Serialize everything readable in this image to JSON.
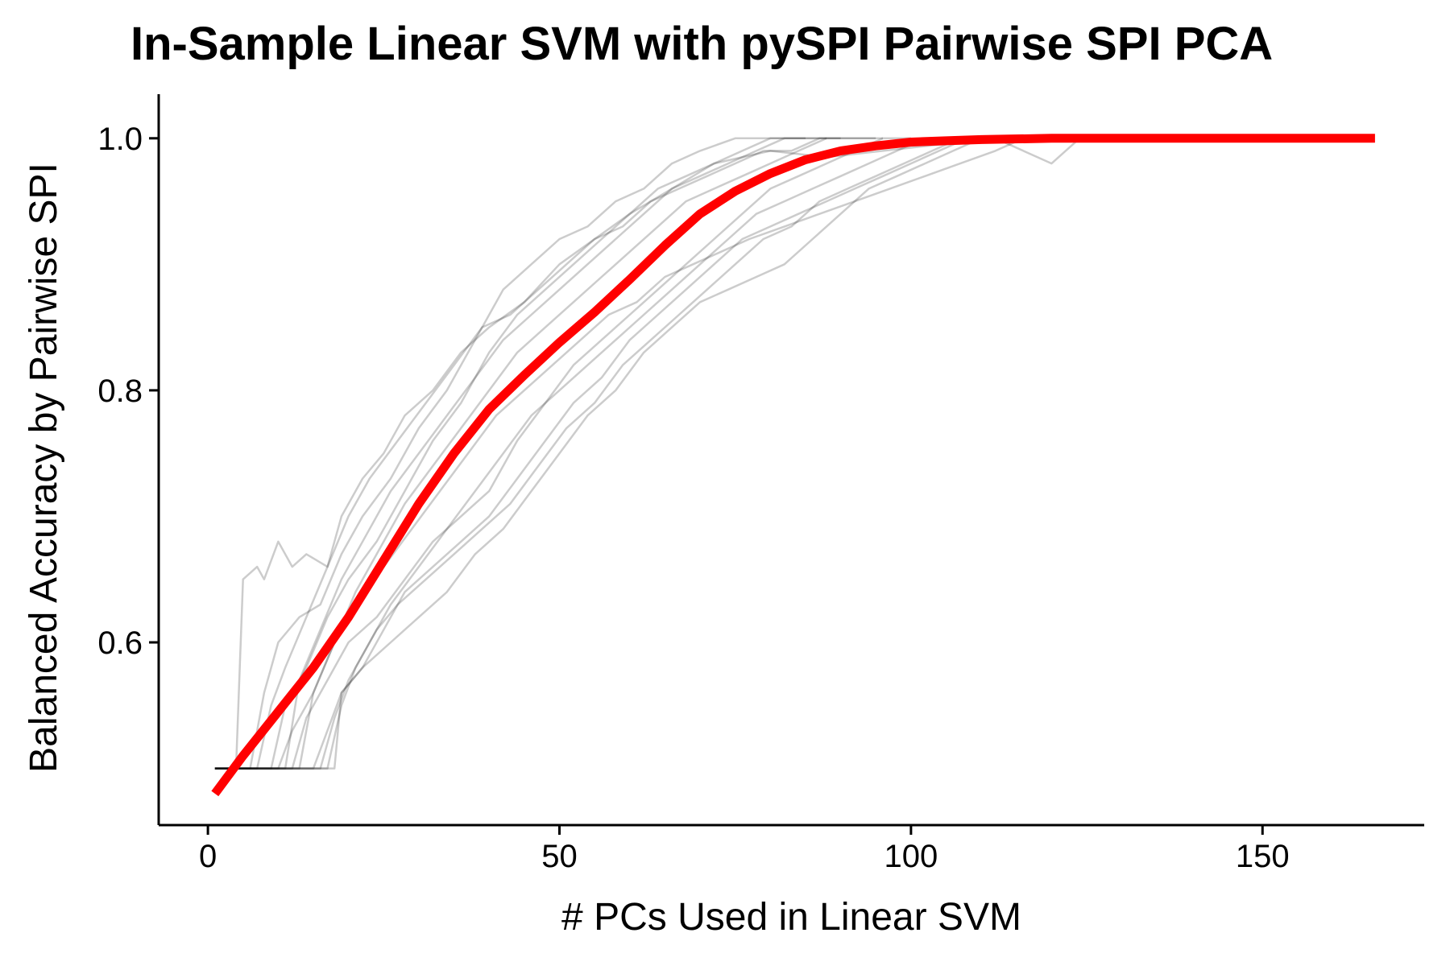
{
  "colors": {
    "background": "#ffffff",
    "axis": "#000000",
    "replicate_line": "#000000",
    "mean_line": "#ff0000"
  },
  "chart_data": {
    "type": "line",
    "title": "In-Sample Linear SVM with pySPI Pairwise SPI PCA",
    "xlabel": "# PCs Used in Linear SVM",
    "ylabel": "Balanced Accuracy by Pairwise SPI",
    "xlim": [
      -7,
      173
    ],
    "ylim": [
      0.455,
      1.035
    ],
    "xticks": [
      0,
      50,
      100,
      150
    ],
    "xtick_labels": [
      "0",
      "50",
      "100",
      "150"
    ],
    "yticks": [
      0.6,
      0.8,
      1.0
    ],
    "ytick_labels": [
      "0.6",
      "0.8",
      "1.0"
    ],
    "grid": false,
    "legend": "none",
    "replicate_style": {
      "color": "#000000",
      "opacity": 0.2
    },
    "replicate_series": [
      {
        "x": [
          1,
          4,
          5,
          7,
          8,
          10,
          12,
          14,
          17,
          19,
          22,
          25,
          28,
          32,
          36,
          40,
          45,
          50,
          55,
          60,
          66,
          72,
          80,
          88,
          96,
          104,
          112,
          120,
          124
        ],
        "y": [
          0.5,
          0.5,
          0.65,
          0.66,
          0.65,
          0.68,
          0.66,
          0.67,
          0.66,
          0.7,
          0.73,
          0.75,
          0.78,
          0.8,
          0.83,
          0.85,
          0.87,
          0.9,
          0.92,
          0.94,
          0.96,
          0.98,
          0.99,
          0.985,
          0.99,
          0.995,
          1.0,
          0.98,
          1.0
        ]
      },
      {
        "x": [
          1,
          6,
          8,
          10,
          13,
          16,
          19,
          22,
          26,
          30,
          34,
          38,
          42,
          46,
          50,
          54,
          58,
          62,
          66,
          70,
          75,
          80,
          85
        ],
        "y": [
          0.5,
          0.5,
          0.56,
          0.6,
          0.62,
          0.63,
          0.67,
          0.7,
          0.73,
          0.77,
          0.8,
          0.84,
          0.88,
          0.9,
          0.92,
          0.93,
          0.95,
          0.96,
          0.98,
          0.99,
          1.0,
          1.0,
          1.0
        ]
      },
      {
        "x": [
          1,
          9,
          11,
          14,
          17,
          20,
          24,
          28,
          32,
          36,
          40,
          44,
          48,
          52,
          56,
          60,
          64,
          68,
          72,
          76,
          80,
          84,
          88
        ],
        "y": [
          0.5,
          0.5,
          0.55,
          0.58,
          0.62,
          0.65,
          0.68,
          0.72,
          0.76,
          0.79,
          0.83,
          0.86,
          0.88,
          0.9,
          0.92,
          0.94,
          0.96,
          0.97,
          0.98,
          0.99,
          1.0,
          1.0,
          1.0
        ]
      },
      {
        "x": [
          1,
          12,
          14,
          17,
          20,
          24,
          28,
          32,
          36,
          40,
          44,
          48,
          52,
          56,
          60,
          64,
          68,
          72,
          76,
          80,
          84,
          88,
          92,
          96,
          100
        ],
        "y": [
          0.5,
          0.5,
          0.54,
          0.57,
          0.6,
          0.62,
          0.65,
          0.68,
          0.7,
          0.72,
          0.76,
          0.79,
          0.82,
          0.84,
          0.86,
          0.88,
          0.9,
          0.92,
          0.94,
          0.96,
          0.97,
          0.98,
          0.99,
          1.0,
          1.0
        ]
      },
      {
        "x": [
          1,
          15,
          17,
          19,
          22,
          26,
          30,
          34,
          38,
          42,
          46,
          50,
          54,
          58,
          62,
          66,
          70,
          74,
          78,
          82,
          86,
          90,
          94,
          98,
          102,
          106,
          110
        ],
        "y": [
          0.5,
          0.5,
          0.53,
          0.56,
          0.58,
          0.6,
          0.62,
          0.64,
          0.67,
          0.69,
          0.72,
          0.75,
          0.78,
          0.8,
          0.83,
          0.85,
          0.87,
          0.88,
          0.89,
          0.9,
          0.92,
          0.94,
          0.96,
          0.97,
          0.98,
          0.99,
          1.0
        ]
      },
      {
        "x": [
          1,
          18,
          19,
          22,
          25,
          28,
          32,
          36,
          40,
          44,
          48,
          52,
          56,
          60,
          64,
          68,
          72,
          76,
          80,
          84,
          88,
          92,
          96,
          100,
          104,
          108
        ],
        "y": [
          0.5,
          0.5,
          0.56,
          0.58,
          0.61,
          0.64,
          0.66,
          0.68,
          0.7,
          0.73,
          0.76,
          0.79,
          0.81,
          0.84,
          0.86,
          0.88,
          0.9,
          0.92,
          0.93,
          0.94,
          0.95,
          0.96,
          0.97,
          0.98,
          0.99,
          1.0
        ]
      },
      {
        "x": [
          1,
          10,
          12,
          15,
          18,
          21,
          25,
          29,
          33,
          37,
          41,
          45,
          49,
          53,
          57,
          61,
          65,
          69,
          73,
          77,
          82,
          87,
          92,
          97,
          102,
          107,
          112,
          116
        ],
        "y": [
          0.5,
          0.5,
          0.53,
          0.56,
          0.6,
          0.63,
          0.66,
          0.69,
          0.72,
          0.75,
          0.78,
          0.8,
          0.82,
          0.84,
          0.86,
          0.87,
          0.89,
          0.9,
          0.91,
          0.92,
          0.93,
          0.94,
          0.95,
          0.96,
          0.97,
          0.98,
          0.99,
          1.0
        ]
      },
      {
        "x": [
          1,
          7,
          9,
          11,
          14,
          17,
          20,
          23,
          27,
          31,
          35,
          39,
          43,
          47,
          51,
          55,
          59,
          63,
          67,
          71,
          75,
          79,
          83,
          87,
          91,
          95
        ],
        "y": [
          0.5,
          0.5,
          0.55,
          0.58,
          0.62,
          0.66,
          0.7,
          0.73,
          0.76,
          0.79,
          0.82,
          0.85,
          0.86,
          0.88,
          0.9,
          0.92,
          0.93,
          0.95,
          0.96,
          0.97,
          0.98,
          0.99,
          0.99,
          1.0,
          1.0,
          1.0
        ]
      },
      {
        "x": [
          1,
          13,
          15,
          18,
          21,
          24,
          28,
          32,
          36,
          40,
          44,
          48,
          52,
          56,
          60,
          64,
          68,
          72,
          76,
          80,
          84,
          88,
          92,
          96
        ],
        "y": [
          0.5,
          0.5,
          0.56,
          0.6,
          0.64,
          0.67,
          0.71,
          0.74,
          0.77,
          0.8,
          0.83,
          0.85,
          0.87,
          0.89,
          0.91,
          0.93,
          0.95,
          0.96,
          0.97,
          0.98,
          0.99,
          1.0,
          1.0,
          1.0
        ]
      },
      {
        "x": [
          1,
          16,
          18,
          20,
          23,
          26,
          30,
          34,
          38,
          42,
          46,
          50,
          54,
          58,
          62,
          66,
          70,
          74,
          78,
          82,
          86,
          90,
          94,
          98,
          102
        ],
        "y": [
          0.5,
          0.5,
          0.54,
          0.57,
          0.6,
          0.63,
          0.66,
          0.69,
          0.72,
          0.75,
          0.78,
          0.8,
          0.82,
          0.84,
          0.86,
          0.88,
          0.9,
          0.92,
          0.94,
          0.95,
          0.96,
          0.97,
          0.98,
          0.99,
          1.0
        ]
      },
      {
        "x": [
          1,
          11,
          13,
          16,
          19,
          22,
          26,
          30,
          34,
          38,
          42,
          46,
          50,
          54,
          58,
          62,
          66,
          70,
          74,
          78,
          82,
          86,
          90
        ],
        "y": [
          0.5,
          0.5,
          0.57,
          0.61,
          0.65,
          0.68,
          0.72,
          0.75,
          0.78,
          0.81,
          0.84,
          0.86,
          0.88,
          0.9,
          0.92,
          0.94,
          0.96,
          0.97,
          0.98,
          0.99,
          1.0,
          1.0,
          1.0
        ]
      },
      {
        "x": [
          1,
          17,
          19,
          21,
          24,
          27,
          31,
          35,
          39,
          43,
          47,
          51,
          55,
          59,
          63,
          67,
          71,
          75,
          79,
          83,
          87,
          91,
          95,
          99,
          103,
          107
        ],
        "y": [
          0.5,
          0.5,
          0.55,
          0.58,
          0.61,
          0.63,
          0.65,
          0.67,
          0.69,
          0.71,
          0.74,
          0.77,
          0.79,
          0.82,
          0.84,
          0.86,
          0.88,
          0.9,
          0.92,
          0.93,
          0.95,
          0.96,
          0.97,
          0.98,
          0.99,
          1.0
        ]
      }
    ],
    "mean_series": {
      "x": [
        1,
        5,
        10,
        15,
        20,
        25,
        30,
        35,
        40,
        45,
        50,
        55,
        60,
        65,
        70,
        75,
        80,
        85,
        90,
        95,
        100,
        105,
        110,
        120,
        130,
        140,
        150,
        160,
        166
      ],
      "y": [
        0.48,
        0.51,
        0.545,
        0.58,
        0.62,
        0.665,
        0.71,
        0.75,
        0.785,
        0.812,
        0.838,
        0.862,
        0.888,
        0.915,
        0.94,
        0.958,
        0.972,
        0.983,
        0.99,
        0.994,
        0.997,
        0.998,
        0.999,
        1.0,
        1.0,
        1.0,
        1.0,
        1.0,
        1.0
      ]
    }
  }
}
